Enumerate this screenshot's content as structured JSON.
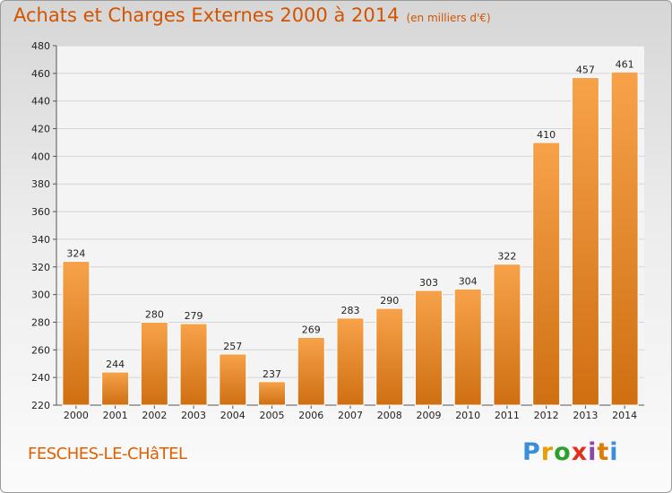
{
  "chart_data": {
    "type": "bar",
    "title": "Achats et Charges Externes 2000 à 2014",
    "subtitle": "(en milliers d'€)",
    "categories": [
      "2000",
      "2001",
      "2002",
      "2003",
      "2004",
      "2005",
      "2006",
      "2007",
      "2008",
      "2009",
      "2010",
      "2011",
      "2012",
      "2013",
      "2014"
    ],
    "values": [
      324,
      244,
      280,
      279,
      257,
      237,
      269,
      283,
      290,
      303,
      304,
      322,
      410,
      457,
      461
    ],
    "ylim": [
      220,
      480
    ],
    "yticks": [
      220,
      240,
      260,
      280,
      300,
      320,
      340,
      360,
      380,
      400,
      420,
      440,
      460,
      480
    ],
    "xlabel": "",
    "ylabel": "",
    "grid": true,
    "bar_color": "#f08a24"
  },
  "footer": {
    "commune": "FESCHES-LE-CHâTEL",
    "logo_letters": [
      "P",
      "r",
      "o",
      "x",
      "i",
      "t",
      "i"
    ],
    "logo_colors": [
      "#3a8fd8",
      "#e8a000",
      "#2ca02c",
      "#e0301e",
      "#8e44ad",
      "#e07a00",
      "#3a8fd8"
    ]
  }
}
